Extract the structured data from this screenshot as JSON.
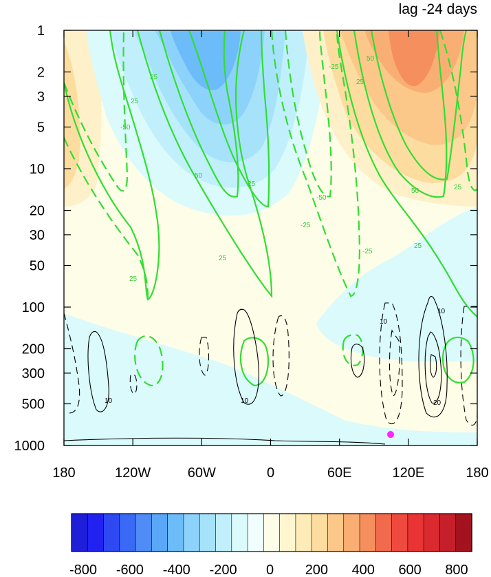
{
  "chart_data": {
    "type": "heatmap",
    "title": "lag -24 days",
    "xlabel": "",
    "ylabel": "",
    "x_ticks": [
      "180",
      "120W",
      "60W",
      "0",
      "60E",
      "120E",
      "180"
    ],
    "x_range": [
      -180,
      180
    ],
    "y_ticks": [
      1,
      2,
      3,
      5,
      10,
      20,
      30,
      50,
      100,
      200,
      300,
      500,
      1000
    ],
    "y_range": [
      1,
      1000
    ],
    "y_scale": "log",
    "y_reversed": true,
    "colorbar": {
      "ticks": [
        "-800",
        "-600",
        "-400",
        "-200",
        "0",
        "200",
        "400",
        "600",
        "800"
      ],
      "min": -800,
      "max": 800,
      "step": 50,
      "colors": [
        "#1f1fd9",
        "#2222f0",
        "#2e48f2",
        "#3a6af5",
        "#4f8cf6",
        "#5aa6f7",
        "#6bbcf8",
        "#8dd2fa",
        "#a6e3fb",
        "#c1f0fc",
        "#dafafc",
        "#f0fefe",
        "#fefde8",
        "#fff6cf",
        "#feecb8",
        "#fddca0",
        "#fbc88a",
        "#f9af73",
        "#f68f5e",
        "#f26a4d",
        "#ee4a40",
        "#e83434",
        "#da2a2f",
        "#c41f2a",
        "#a3121f"
      ]
    },
    "green_contours": {
      "color": "#33dd33",
      "labels": [
        "25",
        "50",
        "-25",
        "-50"
      ]
    },
    "black_contours": {
      "color": "#000000",
      "labels": [
        "10",
        "20"
      ]
    },
    "marker": {
      "lon": 105,
      "pressure": 850,
      "color": "#ff22ff"
    }
  }
}
